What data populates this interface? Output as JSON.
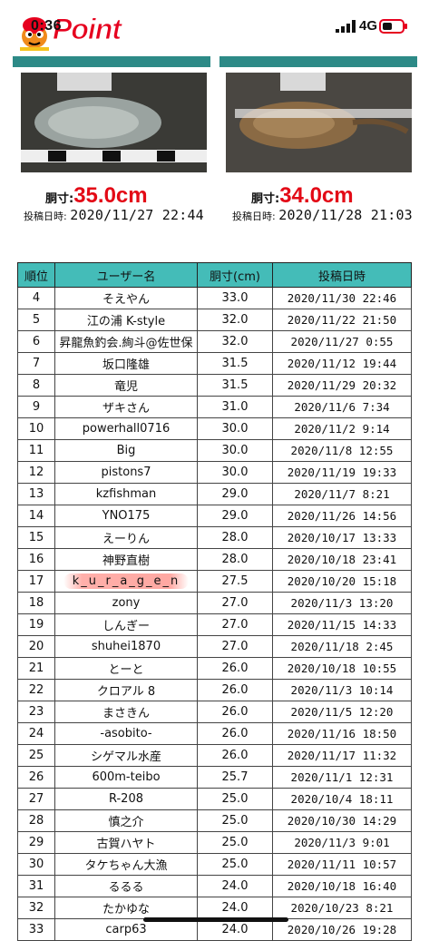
{
  "status_bar": {
    "time": "0:36",
    "network": "4G",
    "logo_text": "Point"
  },
  "featured": [
    {
      "size_label": "胴寸:",
      "size_value": "35.0cm",
      "date_label": "投稿日時:",
      "date_value": "2020/11/27 22:44"
    },
    {
      "size_label": "胴寸:",
      "size_value": "34.0cm",
      "date_label": "投稿日時:",
      "date_value": "2020/11/28 21:03"
    }
  ],
  "table": {
    "headers": [
      "順位",
      "ユーザー名",
      "胴寸(cm)",
      "投稿日時"
    ],
    "rows": [
      {
        "rank": "4",
        "user": "そえやん",
        "size": "33.0",
        "date": "2020/11/30 22:46"
      },
      {
        "rank": "5",
        "user": "江の浦 K-style",
        "size": "32.0",
        "date": "2020/11/22 21:50"
      },
      {
        "rank": "6",
        "user": "昇龍魚釣会.絢斗@佐世保",
        "size": "32.0",
        "date": "2020/11/27 0:55"
      },
      {
        "rank": "7",
        "user": "坂口隆雄",
        "size": "31.5",
        "date": "2020/11/12 19:44"
      },
      {
        "rank": "8",
        "user": "竜児",
        "size": "31.5",
        "date": "2020/11/29 20:32"
      },
      {
        "rank": "9",
        "user": "ザキさん",
        "size": "31.0",
        "date": "2020/11/6 7:34"
      },
      {
        "rank": "10",
        "user": "powerhall0716",
        "size": "30.0",
        "date": "2020/11/2 9:14"
      },
      {
        "rank": "11",
        "user": "Big",
        "size": "30.0",
        "date": "2020/11/8 12:55"
      },
      {
        "rank": "12",
        "user": "pistons7",
        "size": "30.0",
        "date": "2020/11/19 19:33"
      },
      {
        "rank": "13",
        "user": "kzfishman",
        "size": "29.0",
        "date": "2020/11/7 8:21"
      },
      {
        "rank": "14",
        "user": "YNO175",
        "size": "29.0",
        "date": "2020/11/26 14:56"
      },
      {
        "rank": "15",
        "user": "えーりん",
        "size": "28.0",
        "date": "2020/10/17 13:33"
      },
      {
        "rank": "16",
        "user": "神野直樹",
        "size": "28.0",
        "date": "2020/10/18 23:41"
      },
      {
        "rank": "17",
        "user": "k_u_r_a_g_e_n",
        "size": "27.5",
        "date": "2020/10/20 15:18"
      },
      {
        "rank": "18",
        "user": "zony",
        "size": "27.0",
        "date": "2020/11/3 13:20"
      },
      {
        "rank": "19",
        "user": "しんぎー",
        "size": "27.0",
        "date": "2020/11/15 14:33"
      },
      {
        "rank": "20",
        "user": "shuhei1870",
        "size": "27.0",
        "date": "2020/11/18 2:45"
      },
      {
        "rank": "21",
        "user": "とーと",
        "size": "26.0",
        "date": "2020/10/18 10:55"
      },
      {
        "rank": "22",
        "user": "クロアル 8",
        "size": "26.0",
        "date": "2020/11/3 10:14"
      },
      {
        "rank": "23",
        "user": "まさきん",
        "size": "26.0",
        "date": "2020/11/5 12:20"
      },
      {
        "rank": "24",
        "user": "-asobito-",
        "size": "26.0",
        "date": "2020/11/16 18:50"
      },
      {
        "rank": "25",
        "user": "シゲマル水産",
        "size": "26.0",
        "date": "2020/11/17 11:32"
      },
      {
        "rank": "26",
        "user": "600m-teibo",
        "size": "25.7",
        "date": "2020/11/1 12:31"
      },
      {
        "rank": "27",
        "user": "R-208",
        "size": "25.0",
        "date": "2020/10/4 18:11"
      },
      {
        "rank": "28",
        "user": "慎之介",
        "size": "25.0",
        "date": "2020/10/30 14:29"
      },
      {
        "rank": "29",
        "user": "古賀ハヤト",
        "size": "25.0",
        "date": "2020/11/3 9:01"
      },
      {
        "rank": "30",
        "user": "タケちゃん大漁",
        "size": "25.0",
        "date": "2020/11/11 10:57"
      },
      {
        "rank": "31",
        "user": "るるる",
        "size": "24.0",
        "date": "2020/10/18 16:40"
      },
      {
        "rank": "32",
        "user": "たかゆな",
        "size": "24.0",
        "date": "2020/10/23 8:21"
      },
      {
        "rank": "33",
        "user": "carp63",
        "size": "24.0",
        "date": "2020/10/26 19:28"
      }
    ],
    "highlight_rank": "17",
    "highlight_color": "#ff6e64",
    "header_color": "#44bcb8"
  }
}
